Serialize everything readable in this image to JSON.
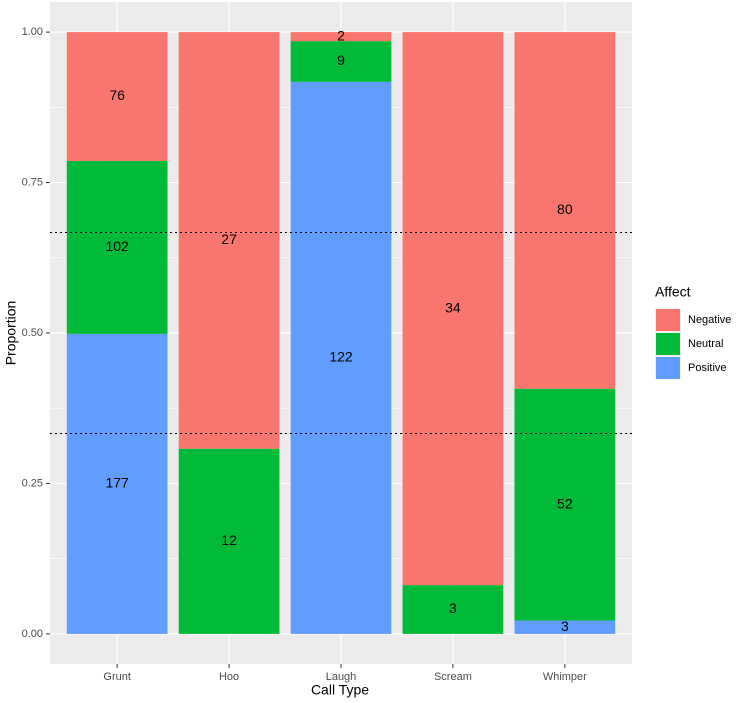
{
  "chart_data": {
    "type": "bar",
    "stacked": true,
    "normalize": true,
    "x_label": "Call Type",
    "y_label": "Proportion",
    "categories": [
      "Grunt",
      "Hoo",
      "Laugh",
      "Scream",
      "Whimper"
    ],
    "series": [
      {
        "name": "Negative",
        "color": "#f8766d",
        "values": [
          76,
          27,
          2,
          34,
          80
        ]
      },
      {
        "name": "Neutral",
        "color": "#00ba38",
        "values": [
          102,
          12,
          9,
          3,
          52
        ]
      },
      {
        "name": "Positive",
        "color": "#619cff",
        "values": [
          177,
          null,
          122,
          null,
          3
        ]
      }
    ],
    "ylim": [
      -0.05,
      1.05
    ],
    "yticks": [
      {
        "value": 0,
        "label": "0.00"
      },
      {
        "value": 0.25,
        "label": "0.25"
      },
      {
        "value": 0.5,
        "label": "0.50"
      },
      {
        "value": 0.75,
        "label": "0.75"
      },
      {
        "value": 1,
        "label": "1.00"
      }
    ],
    "hlines": [
      0.667,
      0.333
    ],
    "grid": true,
    "legend": {
      "title": "Affect",
      "position": "right"
    }
  }
}
